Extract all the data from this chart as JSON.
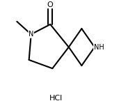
{
  "bg_color": "#ffffff",
  "line_color": "#000000",
  "line_width": 1.5,
  "text_color": "#000000",
  "hcl_label": "HCl",
  "N_label": "N",
  "NH_label": "NH",
  "O_label": "O",
  "figsize": [
    1.71,
    1.55
  ],
  "dpi": 100,
  "font_size": 7,
  "hcl_font_size": 8
}
